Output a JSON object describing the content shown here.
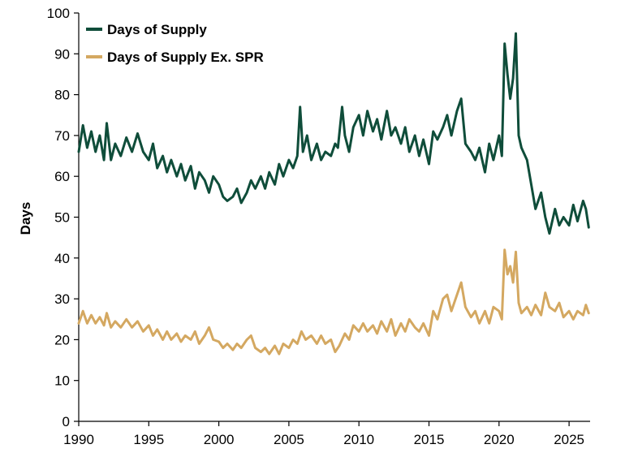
{
  "chart_data": {
    "type": "line",
    "title": "",
    "xlabel": "",
    "ylabel": "Days",
    "xlim": [
      1990,
      2026.5
    ],
    "ylim": [
      0,
      100
    ],
    "x_ticks": [
      "1990",
      "1995",
      "2000",
      "2005",
      "2010",
      "2015",
      "2020",
      "2025"
    ],
    "y_ticks": [
      "0",
      "10",
      "20",
      "30",
      "40",
      "50",
      "60",
      "70",
      "80",
      "90",
      "100"
    ],
    "grid": false,
    "legend_position": "top-left",
    "series": [
      {
        "name": "Days of Supply",
        "color": "#0f4d3a",
        "points": [
          [
            1990.0,
            66
          ],
          [
            1990.3,
            72.5
          ],
          [
            1990.6,
            67
          ],
          [
            1990.9,
            71
          ],
          [
            1991.2,
            66
          ],
          [
            1991.5,
            70
          ],
          [
            1991.8,
            64
          ],
          [
            1992.0,
            73
          ],
          [
            1992.3,
            64
          ],
          [
            1992.6,
            68
          ],
          [
            1993.0,
            65
          ],
          [
            1993.4,
            69.5
          ],
          [
            1993.8,
            66
          ],
          [
            1994.2,
            70.5
          ],
          [
            1994.6,
            66
          ],
          [
            1995.0,
            64
          ],
          [
            1995.3,
            68
          ],
          [
            1995.6,
            62
          ],
          [
            1996.0,
            65
          ],
          [
            1996.3,
            61
          ],
          [
            1996.6,
            64
          ],
          [
            1997.0,
            60
          ],
          [
            1997.3,
            63
          ],
          [
            1997.6,
            59
          ],
          [
            1998.0,
            62.5
          ],
          [
            1998.3,
            57
          ],
          [
            1998.6,
            61
          ],
          [
            1999.0,
            59
          ],
          [
            1999.3,
            56
          ],
          [
            1999.6,
            60
          ],
          [
            2000.0,
            58
          ],
          [
            2000.3,
            55
          ],
          [
            2000.6,
            54
          ],
          [
            2001.0,
            55
          ],
          [
            2001.3,
            57
          ],
          [
            2001.6,
            53.5
          ],
          [
            2002.0,
            56
          ],
          [
            2002.3,
            59
          ],
          [
            2002.6,
            57
          ],
          [
            2003.0,
            60
          ],
          [
            2003.3,
            57
          ],
          [
            2003.6,
            61
          ],
          [
            2004.0,
            58
          ],
          [
            2004.3,
            63
          ],
          [
            2004.6,
            60
          ],
          [
            2005.0,
            64
          ],
          [
            2005.3,
            62
          ],
          [
            2005.6,
            65
          ],
          [
            2005.8,
            77
          ],
          [
            2006.0,
            66
          ],
          [
            2006.3,
            70
          ],
          [
            2006.6,
            64
          ],
          [
            2007.0,
            68
          ],
          [
            2007.3,
            64
          ],
          [
            2007.6,
            66
          ],
          [
            2008.0,
            65
          ],
          [
            2008.3,
            68
          ],
          [
            2008.5,
            67
          ],
          [
            2008.8,
            77
          ],
          [
            2009.0,
            70
          ],
          [
            2009.3,
            66
          ],
          [
            2009.6,
            72
          ],
          [
            2010.0,
            75
          ],
          [
            2010.3,
            70
          ],
          [
            2010.6,
            76
          ],
          [
            2011.0,
            71
          ],
          [
            2011.3,
            74
          ],
          [
            2011.6,
            69
          ],
          [
            2012.0,
            76
          ],
          [
            2012.3,
            70
          ],
          [
            2012.6,
            72
          ],
          [
            2013.0,
            68
          ],
          [
            2013.3,
            72
          ],
          [
            2013.6,
            66
          ],
          [
            2014.0,
            70
          ],
          [
            2014.3,
            65
          ],
          [
            2014.6,
            69
          ],
          [
            2015.0,
            63
          ],
          [
            2015.3,
            71
          ],
          [
            2015.6,
            69
          ],
          [
            2016.0,
            72
          ],
          [
            2016.3,
            75
          ],
          [
            2016.6,
            70
          ],
          [
            2017.0,
            76
          ],
          [
            2017.3,
            79
          ],
          [
            2017.6,
            68
          ],
          [
            2018.0,
            66
          ],
          [
            2018.3,
            64
          ],
          [
            2018.6,
            67
          ],
          [
            2019.0,
            61
          ],
          [
            2019.3,
            68
          ],
          [
            2019.6,
            64
          ],
          [
            2020.0,
            70
          ],
          [
            2020.2,
            65
          ],
          [
            2020.4,
            92.5
          ],
          [
            2020.6,
            85
          ],
          [
            2020.8,
            79
          ],
          [
            2021.0,
            84
          ],
          [
            2021.2,
            95
          ],
          [
            2021.4,
            70
          ],
          [
            2021.6,
            67
          ],
          [
            2022.0,
            64
          ],
          [
            2022.3,
            58
          ],
          [
            2022.6,
            52
          ],
          [
            2023.0,
            56
          ],
          [
            2023.3,
            50
          ],
          [
            2023.6,
            46
          ],
          [
            2024.0,
            52
          ],
          [
            2024.3,
            48
          ],
          [
            2024.6,
            50
          ],
          [
            2025.0,
            48
          ],
          [
            2025.3,
            53
          ],
          [
            2025.6,
            49
          ],
          [
            2026.0,
            54
          ],
          [
            2026.2,
            52
          ],
          [
            2026.4,
            47.5
          ]
        ]
      },
      {
        "name": "Days of Supply Ex. SPR",
        "color": "#d4a861",
        "points": [
          [
            1990.0,
            24
          ],
          [
            1990.3,
            27
          ],
          [
            1990.6,
            24
          ],
          [
            1990.9,
            26
          ],
          [
            1991.2,
            24
          ],
          [
            1991.5,
            25.5
          ],
          [
            1991.8,
            23.5
          ],
          [
            1992.0,
            26.5
          ],
          [
            1992.3,
            23
          ],
          [
            1992.6,
            24.5
          ],
          [
            1993.0,
            23
          ],
          [
            1993.4,
            25
          ],
          [
            1993.8,
            23
          ],
          [
            1994.2,
            24.5
          ],
          [
            1994.6,
            22
          ],
          [
            1995.0,
            23.5
          ],
          [
            1995.3,
            21
          ],
          [
            1995.6,
            22.5
          ],
          [
            1996.0,
            20
          ],
          [
            1996.3,
            22
          ],
          [
            1996.6,
            20
          ],
          [
            1997.0,
            21.5
          ],
          [
            1997.3,
            19.5
          ],
          [
            1997.6,
            21
          ],
          [
            1998.0,
            20
          ],
          [
            1998.3,
            22
          ],
          [
            1998.6,
            19
          ],
          [
            1999.0,
            21
          ],
          [
            1999.3,
            23
          ],
          [
            1999.6,
            20
          ],
          [
            2000.0,
            19.5
          ],
          [
            2000.3,
            18
          ],
          [
            2000.6,
            19
          ],
          [
            2001.0,
            17.5
          ],
          [
            2001.3,
            19
          ],
          [
            2001.6,
            18
          ],
          [
            2002.0,
            20
          ],
          [
            2002.3,
            21
          ],
          [
            2002.6,
            18
          ],
          [
            2003.0,
            17
          ],
          [
            2003.3,
            18
          ],
          [
            2003.6,
            16.5
          ],
          [
            2004.0,
            18.5
          ],
          [
            2004.3,
            16.5
          ],
          [
            2004.6,
            19
          ],
          [
            2005.0,
            18
          ],
          [
            2005.3,
            20
          ],
          [
            2005.6,
            19
          ],
          [
            2005.9,
            22
          ],
          [
            2006.2,
            20
          ],
          [
            2006.6,
            21
          ],
          [
            2007.0,
            19
          ],
          [
            2007.3,
            21
          ],
          [
            2007.6,
            19
          ],
          [
            2008.0,
            20
          ],
          [
            2008.3,
            17
          ],
          [
            2008.6,
            18.5
          ],
          [
            2009.0,
            21.5
          ],
          [
            2009.3,
            20
          ],
          [
            2009.6,
            23.5
          ],
          [
            2010.0,
            22
          ],
          [
            2010.3,
            24
          ],
          [
            2010.6,
            22
          ],
          [
            2011.0,
            23.5
          ],
          [
            2011.3,
            21.5
          ],
          [
            2011.6,
            24.5
          ],
          [
            2012.0,
            22
          ],
          [
            2012.3,
            25
          ],
          [
            2012.6,
            21
          ],
          [
            2013.0,
            24
          ],
          [
            2013.3,
            22
          ],
          [
            2013.6,
            25
          ],
          [
            2014.0,
            23
          ],
          [
            2014.3,
            22
          ],
          [
            2014.6,
            24
          ],
          [
            2015.0,
            21
          ],
          [
            2015.3,
            27
          ],
          [
            2015.6,
            25
          ],
          [
            2016.0,
            30
          ],
          [
            2016.3,
            31
          ],
          [
            2016.6,
            27
          ],
          [
            2017.0,
            31
          ],
          [
            2017.3,
            34
          ],
          [
            2017.6,
            28
          ],
          [
            2018.0,
            25.5
          ],
          [
            2018.3,
            27
          ],
          [
            2018.6,
            24
          ],
          [
            2019.0,
            27
          ],
          [
            2019.3,
            24
          ],
          [
            2019.6,
            28
          ],
          [
            2020.0,
            27
          ],
          [
            2020.2,
            25
          ],
          [
            2020.4,
            42
          ],
          [
            2020.6,
            36
          ],
          [
            2020.8,
            38
          ],
          [
            2021.0,
            34
          ],
          [
            2021.2,
            41.5
          ],
          [
            2021.4,
            29
          ],
          [
            2021.6,
            26.5
          ],
          [
            2022.0,
            28
          ],
          [
            2022.3,
            26
          ],
          [
            2022.6,
            28.5
          ],
          [
            2023.0,
            26
          ],
          [
            2023.3,
            31.5
          ],
          [
            2023.6,
            28
          ],
          [
            2024.0,
            27
          ],
          [
            2024.3,
            29
          ],
          [
            2024.6,
            25.5
          ],
          [
            2025.0,
            27
          ],
          [
            2025.3,
            25
          ],
          [
            2025.6,
            27
          ],
          [
            2026.0,
            26
          ],
          [
            2026.2,
            28.5
          ],
          [
            2026.4,
            26.5
          ]
        ]
      }
    ]
  }
}
